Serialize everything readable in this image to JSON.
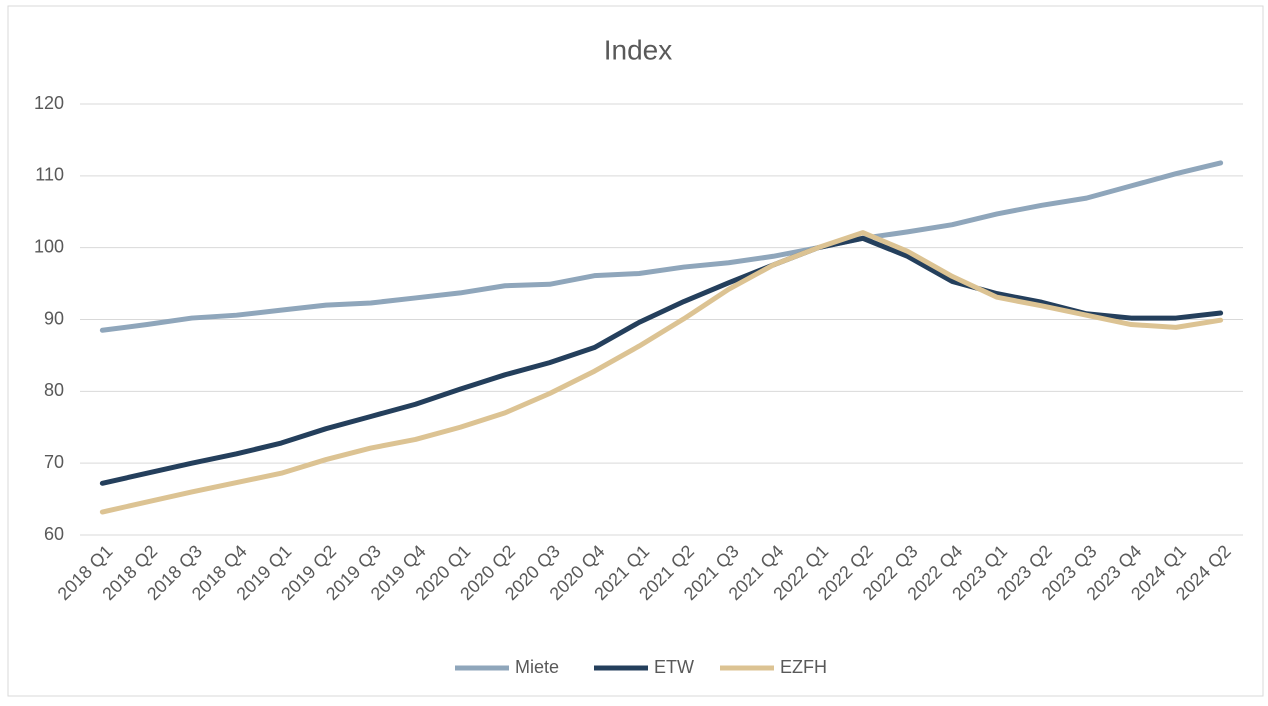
{
  "chart_data": {
    "type": "line",
    "title": "Index",
    "categories": [
      "2018 Q1",
      "2018 Q2",
      "2018 Q3",
      "2018 Q4",
      "2019 Q1",
      "2019 Q2",
      "2019 Q3",
      "2019 Q4",
      "2020 Q1",
      "2020 Q2",
      "2020 Q3",
      "2020 Q4",
      "2021 Q1",
      "2021 Q2",
      "2021 Q3",
      "2021 Q4",
      "2022 Q1",
      "2022 Q2",
      "2022 Q3",
      "2022 Q4",
      "2023 Q1",
      "2023 Q2",
      "2023 Q3",
      "2023 Q4",
      "2024 Q1",
      "2024 Q2"
    ],
    "series": [
      {
        "name": "Miete",
        "color": "#8fa6bb",
        "values": [
          88.5,
          89.3,
          90.2,
          90.6,
          91.3,
          92.0,
          92.3,
          93.0,
          93.7,
          94.7,
          94.9,
          96.1,
          96.4,
          97.3,
          97.9,
          98.8,
          100.0,
          101.3,
          102.2,
          103.2,
          104.7,
          105.9,
          106.9,
          108.6,
          110.3,
          111.8
        ]
      },
      {
        "name": "ETW",
        "color": "#243f5c",
        "values": [
          67.2,
          68.6,
          70.0,
          71.3,
          72.8,
          74.8,
          76.5,
          78.2,
          80.3,
          82.3,
          84.0,
          86.1,
          89.6,
          92.5,
          95.1,
          97.6,
          100.0,
          101.3,
          98.8,
          95.3,
          93.6,
          92.4,
          90.8,
          90.2,
          90.2,
          90.9
        ]
      },
      {
        "name": "EZFH",
        "color": "#dcc393",
        "values": [
          63.2,
          64.6,
          66.0,
          67.3,
          68.6,
          70.5,
          72.1,
          73.3,
          75.0,
          77.0,
          79.7,
          82.8,
          86.3,
          90.1,
          94.2,
          97.6,
          100.0,
          102.1,
          99.5,
          96.0,
          93.1,
          91.9,
          90.6,
          89.3,
          88.9,
          89.9
        ]
      }
    ],
    "ylim": [
      60,
      120
    ],
    "yticks": [
      60,
      70,
      80,
      90,
      100,
      110,
      120
    ],
    "grid": true,
    "legend": "bottom"
  }
}
